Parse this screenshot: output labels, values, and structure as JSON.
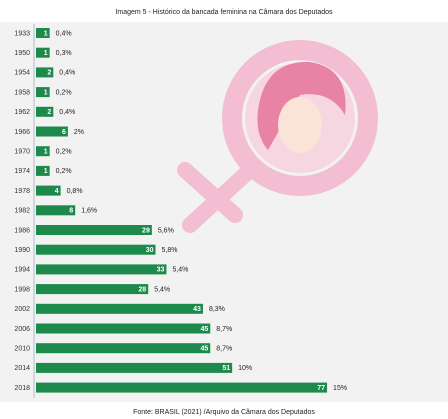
{
  "chart_data": {
    "type": "bar",
    "title": "Imagem 5 - Histórico da bancada feminina na Câmara dos Deputados",
    "footer": "Fonte: BRASIL (2021) /Arquivo da  Câmara dos Deputados",
    "categories": [
      "1933",
      "1950",
      "1954",
      "1958",
      "1962",
      "1966",
      "1970",
      "1974",
      "1978",
      "1982",
      "1986",
      "1990",
      "1994",
      "1998",
      "2002",
      "2006",
      "2010",
      "2014",
      "2018"
    ],
    "values": [
      1,
      1,
      2,
      1,
      2,
      6,
      1,
      1,
      4,
      8,
      29,
      30,
      33,
      28,
      43,
      45,
      45,
      51,
      77
    ],
    "share_values": [
      0.4,
      0.3,
      0.4,
      0.2,
      0.4,
      2,
      0.2,
      0.2,
      0.8,
      1.6,
      5.6,
      5.8,
      5.4,
      5.4,
      8.3,
      8.7,
      8.7,
      10,
      15
    ],
    "share_labels": [
      "0,4%",
      "0,3%",
      "0,4%",
      "0,2%",
      "0,4%",
      "2%",
      "0,2%",
      "0,2%",
      "0,8%",
      "1,6%",
      "5,6%",
      "5,8%",
      "5,4%",
      "5,4%",
      "8,3%",
      "8,7%",
      "8,7%",
      "10%",
      "15%"
    ],
    "color": "#1d8a4c"
  }
}
